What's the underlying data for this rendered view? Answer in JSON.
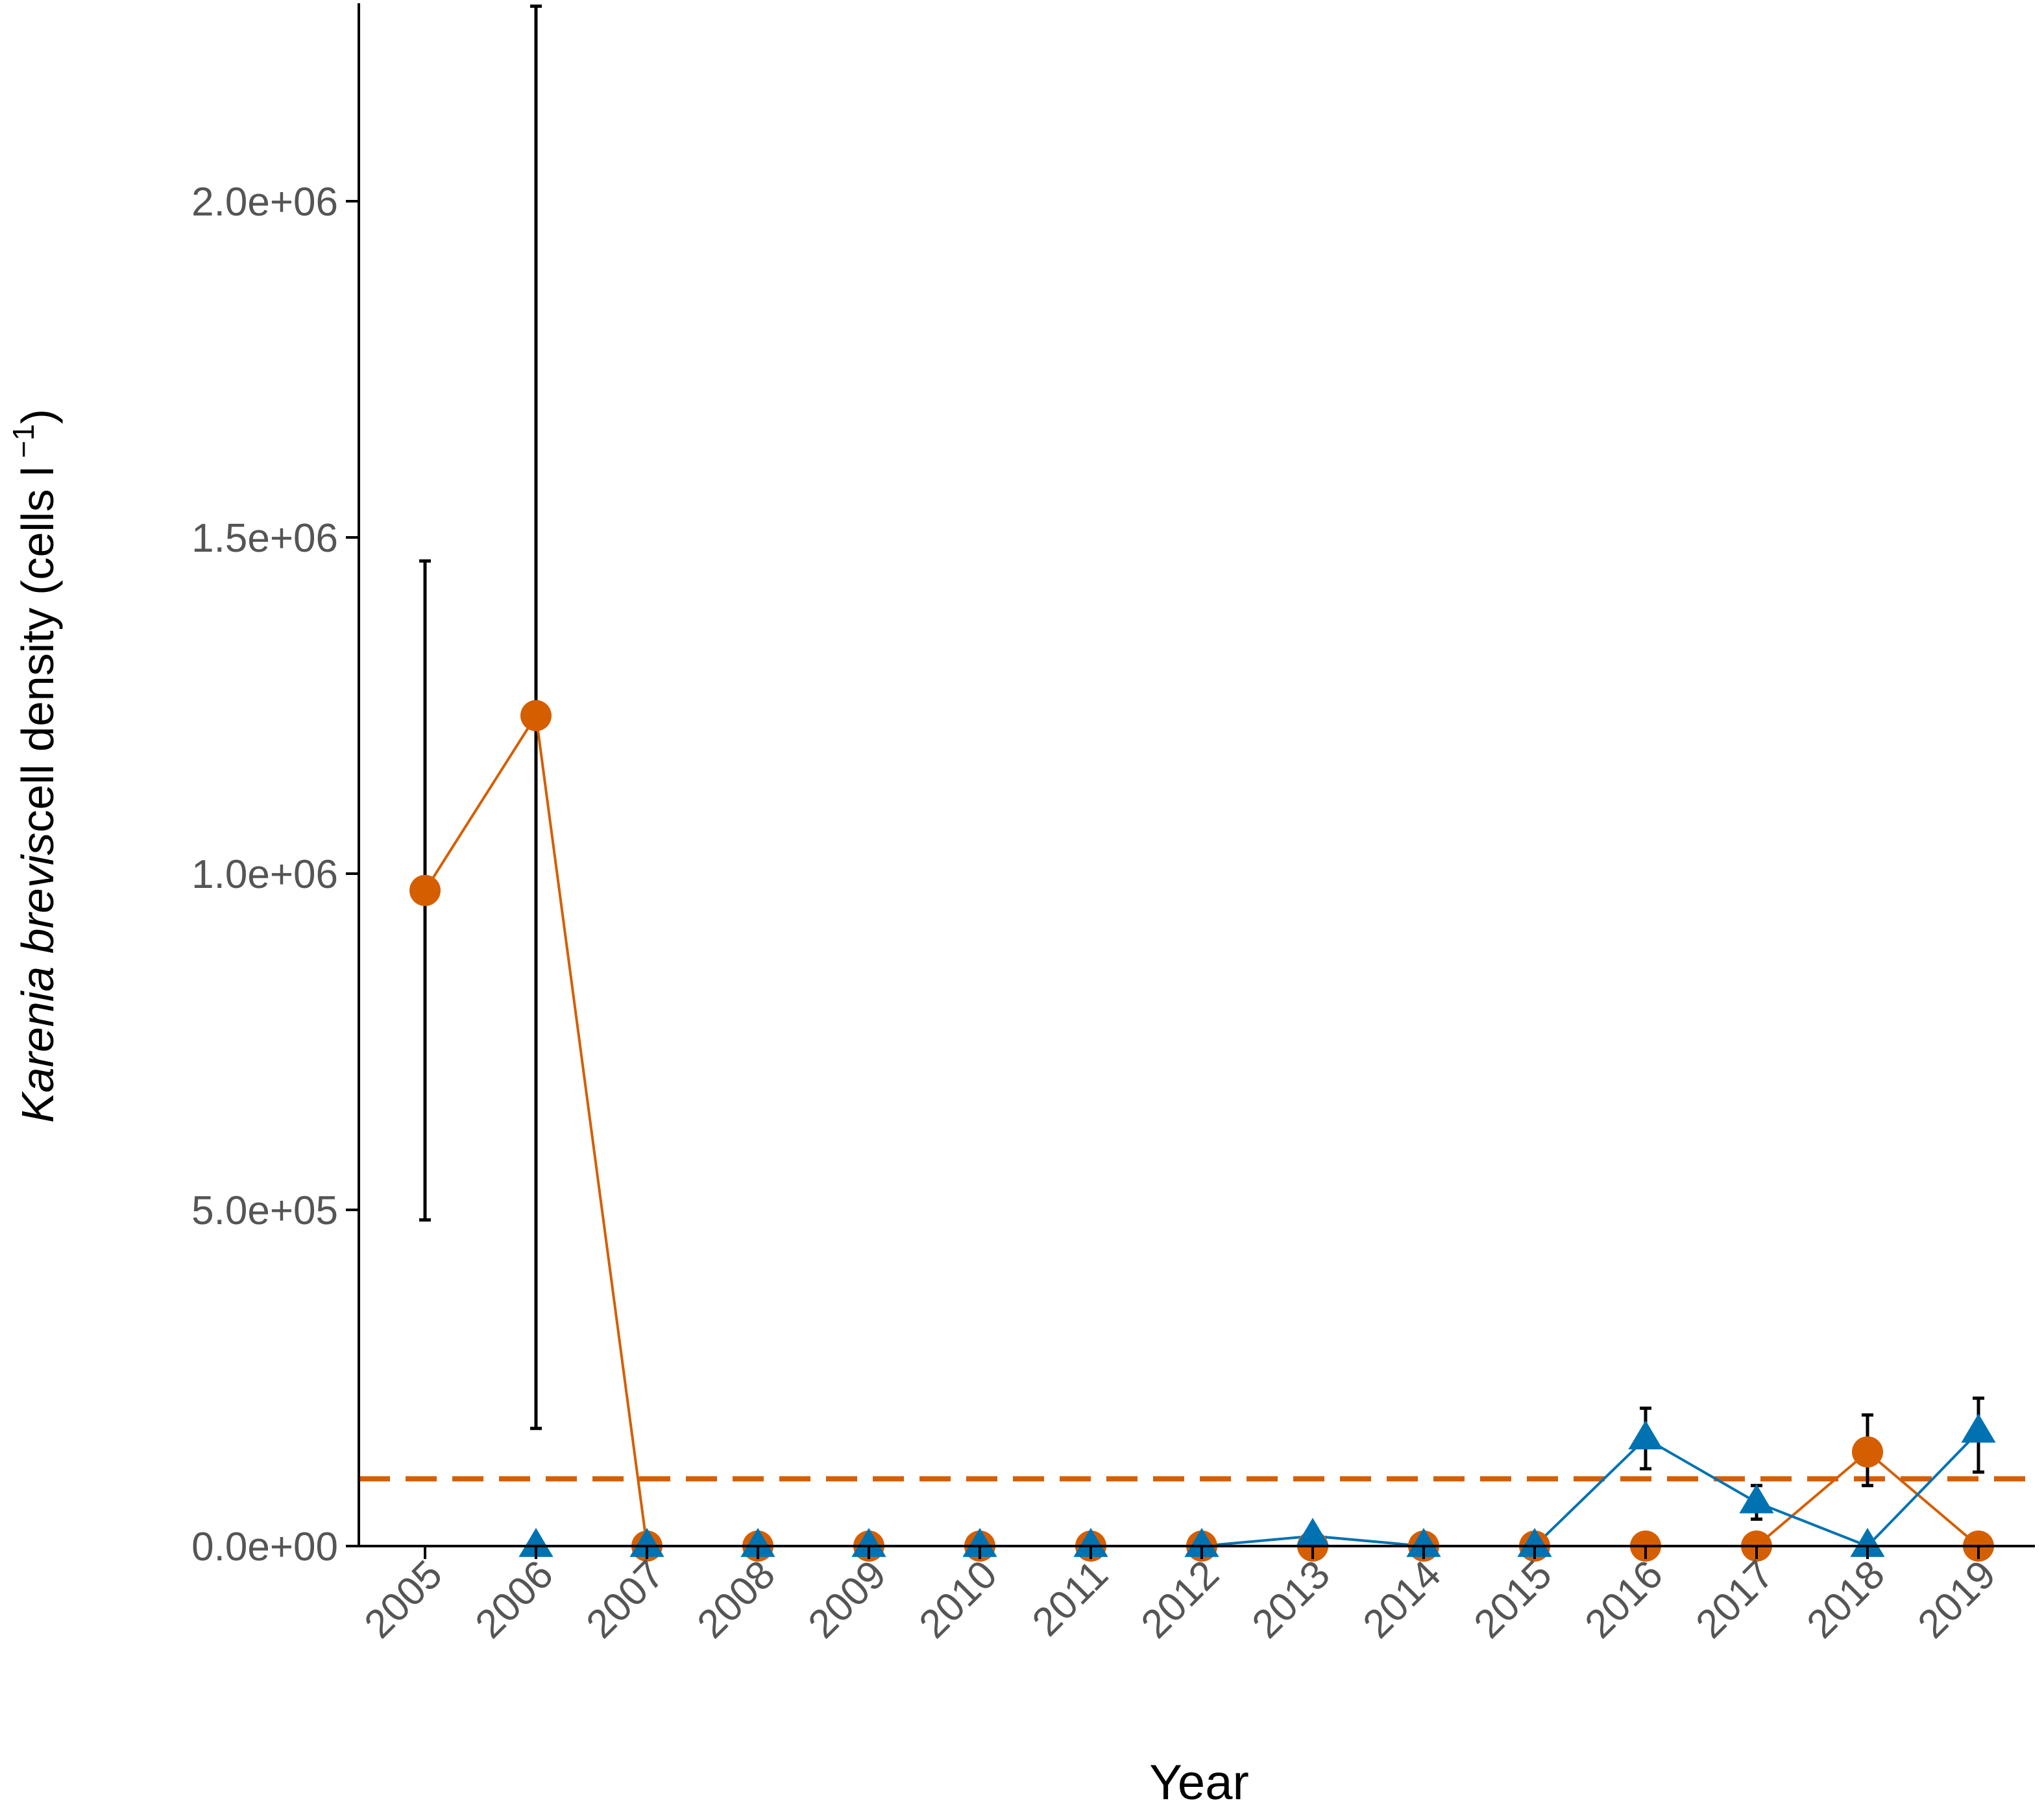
{
  "chart_data": {
    "type": "line",
    "xlabel": "Year",
    "ylabel": {
      "italic": "Karenia brevis",
      "rest": "cell density (cells l",
      "superscript": " −1",
      "close": ")"
    },
    "x": [
      2005,
      2006,
      2007,
      2008,
      2009,
      2010,
      2011,
      2012,
      2013,
      2014,
      2015,
      2016,
      2017,
      2018,
      2019
    ],
    "x_tick_labels": [
      "2005",
      "2006",
      "2007",
      "2008",
      "2009",
      "2010",
      "2011",
      "2012",
      "2013",
      "2014",
      "2015",
      "2016",
      "2017",
      "2018",
      "2019"
    ],
    "ylim": [
      0,
      2290000
    ],
    "y_ticks": [
      0,
      500000,
      1000000,
      1500000,
      2000000
    ],
    "y_tick_labels": [
      "0.0e+00",
      "5.0e+05",
      "1.0e+06",
      "1.5e+06",
      "2.0e+06"
    ],
    "grid": false,
    "threshold": {
      "value": 100000,
      "color": "#D55E00",
      "style": "dashed"
    },
    "series": [
      {
        "marker": "circle",
        "color": "#D55E00",
        "values": [
          975000,
          1235000,
          0,
          0,
          0,
          0,
          0,
          0,
          0,
          0,
          0,
          0,
          0,
          140000,
          0
        ],
        "error_low": [
          485000,
          175000,
          null,
          null,
          null,
          null,
          null,
          null,
          null,
          null,
          null,
          null,
          null,
          90000,
          null
        ],
        "error_high": [
          1465000,
          2290000,
          null,
          null,
          null,
          null,
          null,
          null,
          null,
          null,
          null,
          null,
          null,
          195000,
          null
        ]
      },
      {
        "marker": "triangle",
        "color": "#0072B2",
        "values": [
          null,
          0,
          0,
          0,
          0,
          0,
          0,
          0,
          15000,
          0,
          0,
          160000,
          65000,
          0,
          170000
        ],
        "error_low": [
          null,
          null,
          null,
          null,
          null,
          null,
          null,
          null,
          null,
          null,
          null,
          115000,
          40000,
          null,
          110000
        ],
        "error_high": [
          null,
          null,
          null,
          null,
          null,
          null,
          null,
          null,
          null,
          null,
          null,
          205000,
          90000,
          null,
          220000
        ]
      }
    ]
  }
}
